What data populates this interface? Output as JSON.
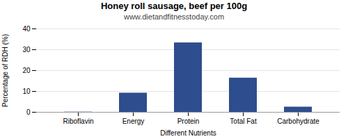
{
  "chart_data": {
    "type": "bar",
    "title": "Honey roll sausage, beef per 100g",
    "subtitle": "www.dietandfitnesstoday.com",
    "xlabel": "Different Nutrients",
    "ylabel": "Percentage of RDH (%)",
    "categories": [
      "Riboflavin",
      "Energy",
      "Protein",
      "Total Fat",
      "Carbohydrate"
    ],
    "values": [
      0.1,
      9.2,
      33.3,
      16.4,
      2.5
    ],
    "color": "#2e4d8e",
    "ylim": [
      0,
      40
    ],
    "yticks": [
      0,
      10,
      20,
      30,
      40
    ],
    "grid": true
  }
}
